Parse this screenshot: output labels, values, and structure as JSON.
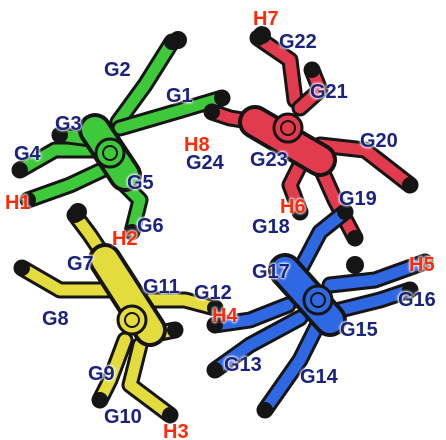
{
  "colors": {
    "green": "#3ec93a",
    "red": "#e33b4e",
    "yellow": "#e3dc3c",
    "blue": "#2f68e3",
    "g_label": "#1a237e",
    "h_label": "#ff2a0a",
    "outline": "#151515"
  },
  "figures": [
    {
      "name": "green-figure",
      "color": "green"
    },
    {
      "name": "red-figure",
      "color": "red"
    },
    {
      "name": "yellow-figure",
      "color": "yellow"
    },
    {
      "name": "blue-figure",
      "color": "blue"
    }
  ],
  "labels": {
    "g1": "G1",
    "g2": "G2",
    "g3": "G3",
    "g4": "G4",
    "g5": "G5",
    "g6": "G6",
    "g7": "G7",
    "g8": "G8",
    "g9": "G9",
    "g10": "G10",
    "g11": "G11",
    "g12": "G12",
    "g13": "G13",
    "g14": "G14",
    "g15": "G15",
    "g16": "G16",
    "g17": "G17",
    "g18": "G18",
    "g19": "G19",
    "g20": "G20",
    "g21": "G21",
    "g22": "G22",
    "g23": "G23",
    "g24": "G24",
    "h1": "H1",
    "h2": "H2",
    "h3": "H3",
    "h4": "H4",
    "h5": "H5",
    "h6": "H6",
    "h7": "H7",
    "h8": "H8"
  }
}
